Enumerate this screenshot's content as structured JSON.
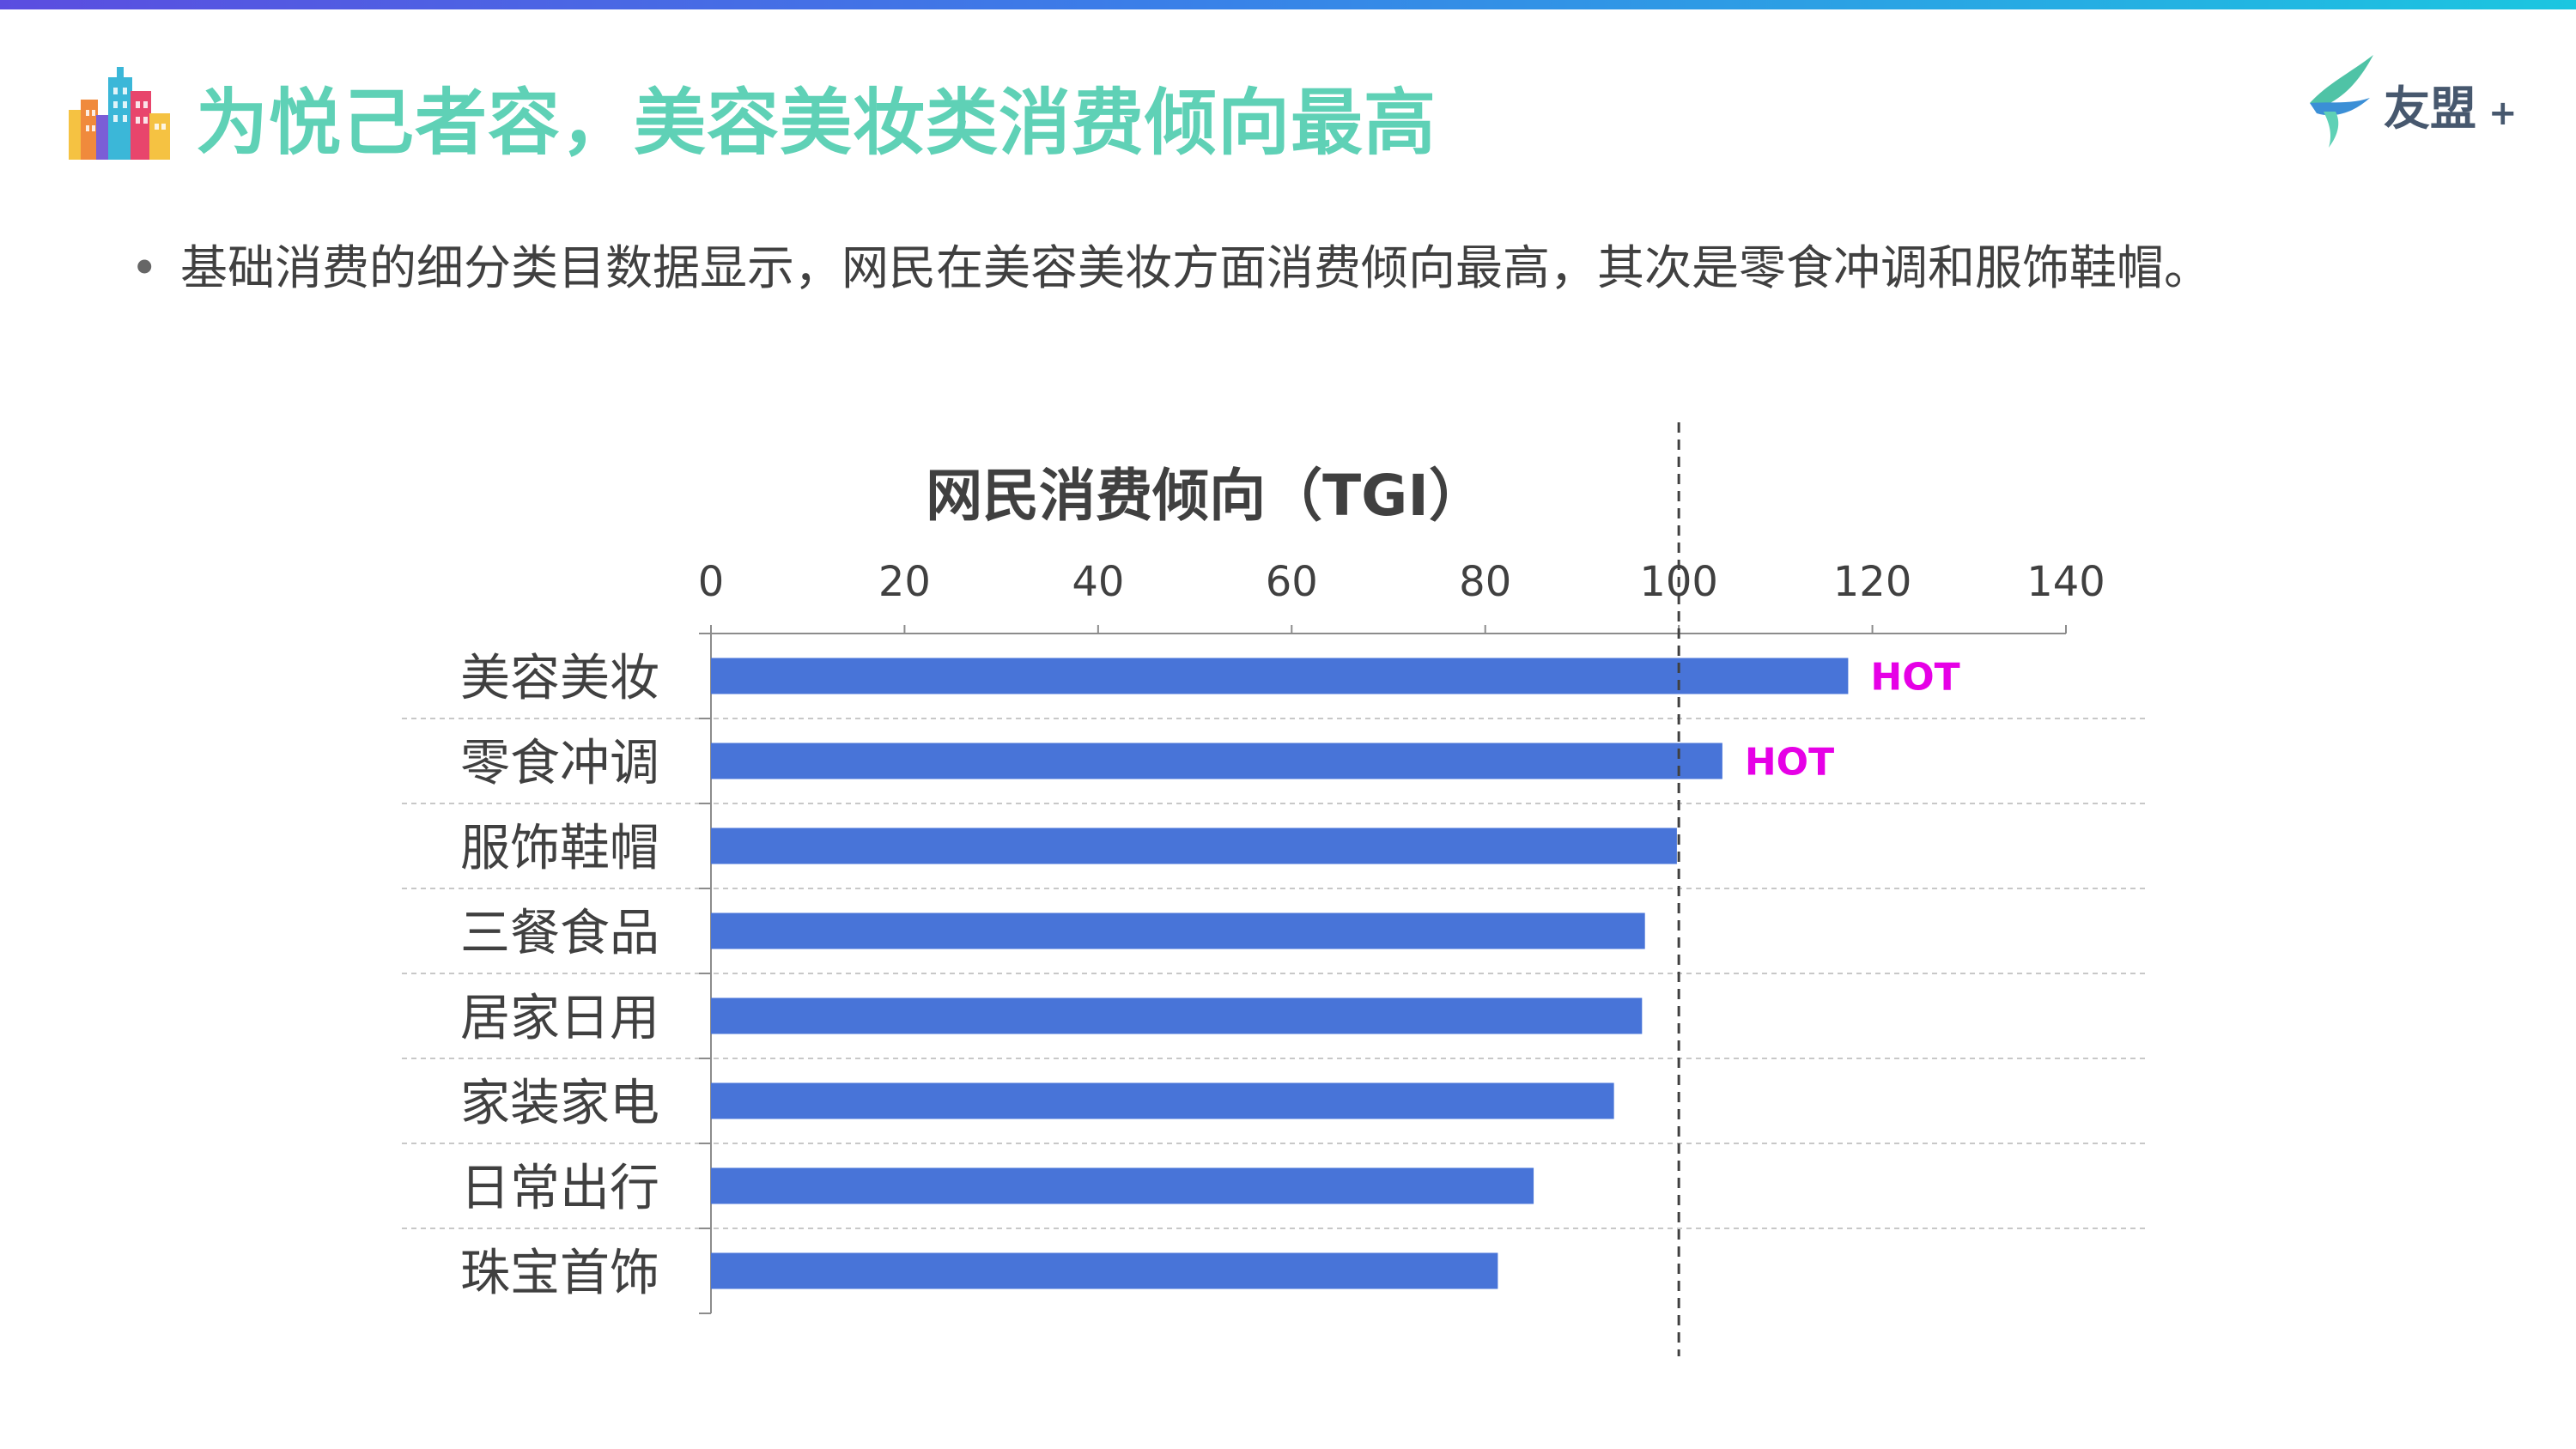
{
  "header": {
    "title": "为悦己者容，美容美妆类消费倾向最高",
    "logo_text": "友盟",
    "logo_plus": "+"
  },
  "bullet": {
    "symbol": "•",
    "text": "基础消费的细分类目数据显示，网民在美容美妆方面消费倾向最高，其次是零食冲调和服饰鞋帽。"
  },
  "colors": {
    "title": "#5fd1b6",
    "bar": "#4874d8",
    "hot": "#e600e6",
    "accent_bar_start": "#5b4de0",
    "accent_bar_end": "#1bc6e0"
  },
  "chart_data": {
    "type": "bar",
    "orientation": "horizontal",
    "title": "网民消费倾向（TGI）",
    "categories": [
      "美容美妆",
      "零食冲调",
      "服饰鞋帽",
      "三餐食品",
      "居家日用",
      "家装家电",
      "日常出行",
      "珠宝首饰"
    ],
    "values": [
      117.5,
      104.5,
      99.8,
      96.5,
      96.2,
      93.3,
      85.0,
      81.3
    ],
    "xlim": [
      0,
      140
    ],
    "xticks": [
      "0",
      "20",
      "40",
      "60",
      "80",
      "100",
      "120",
      "140"
    ],
    "axis_position": "top",
    "reference_line": 100,
    "annotations": [
      "HOT",
      "HOT",
      "",
      "",
      "",
      "",
      "",
      ""
    ],
    "grid": "dashed horizontal separators"
  }
}
